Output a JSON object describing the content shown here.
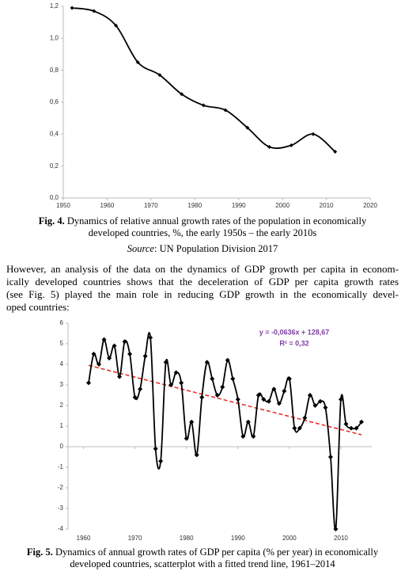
{
  "chart_data": [
    {
      "type": "line",
      "color": "#000000",
      "x": [
        1952,
        1957,
        1962,
        1967,
        1972,
        1977,
        1982,
        1987,
        1992,
        1997,
        2002,
        2007,
        2012
      ],
      "values": [
        1.19,
        1.17,
        1.08,
        0.85,
        0.77,
        0.65,
        0.58,
        0.55,
        0.44,
        0.32,
        0.33,
        0.4,
        0.29
      ],
      "xlim": [
        1950,
        2020
      ],
      "xticks": [
        1950,
        1960,
        1970,
        1980,
        1990,
        2000,
        2010,
        2020
      ],
      "ylim": [
        0,
        1.2
      ],
      "yticks": [
        {
          "value": 0,
          "label": "0,0"
        },
        {
          "value": 0.2,
          "label": "0,2"
        },
        {
          "value": 0.4,
          "label": "0,4"
        },
        {
          "value": 0.6,
          "label": "0,6"
        },
        {
          "value": 0.8,
          "label": "0,8"
        },
        {
          "value": 1.0,
          "label": "1,0"
        },
        {
          "value": 1.2,
          "label": "1,2"
        }
      ],
      "grid": false,
      "figure_label": "Fig. 4.",
      "caption": "Dynamics of relative annual growth rates of the population in economically developed countries, %, the early 1950s – the early 2010s",
      "source_label": "Source",
      "source_text": ": UN Population Division 2017"
    },
    {
      "type": "line",
      "color": "#000000",
      "x": [
        1961,
        1962,
        1963,
        1964,
        1965,
        1966,
        1967,
        1968,
        1969,
        1970,
        1971,
        1972,
        1973,
        1974,
        1975,
        1976,
        1977,
        1978,
        1979,
        1980,
        1981,
        1982,
        1983,
        1984,
        1985,
        1986,
        1987,
        1988,
        1989,
        1990,
        1991,
        1992,
        1993,
        1994,
        1995,
        1996,
        1997,
        1998,
        1999,
        2000,
        2001,
        2002,
        2003,
        2004,
        2005,
        2006,
        2007,
        2008,
        2009,
        2010,
        2011,
        2012,
        2013,
        2014
      ],
      "values": [
        3.1,
        4.5,
        4.0,
        5.2,
        4.3,
        4.9,
        3.4,
        5.1,
        4.5,
        2.4,
        2.8,
        4.4,
        5.3,
        -0.1,
        -0.7,
        4.1,
        3.0,
        3.6,
        3.1,
        0.4,
        1.2,
        -0.4,
        2.4,
        4.1,
        3.3,
        2.5,
        2.9,
        4.2,
        3.3,
        2.3,
        0.5,
        1.2,
        0.5,
        2.5,
        2.3,
        2.2,
        2.8,
        2.1,
        2.7,
        3.3,
        0.9,
        0.9,
        1.4,
        2.5,
        2.0,
        2.2,
        1.9,
        -0.5,
        -4.0,
        2.3,
        1.1,
        0.9,
        0.9,
        1.2
      ],
      "xlim": [
        1957,
        2016
      ],
      "xticks": [
        1960,
        1970,
        1980,
        1990,
        2000,
        2010
      ],
      "ylim": [
        -4,
        6
      ],
      "yticks": [
        -4,
        -3,
        -2,
        -1,
        0,
        1,
        2,
        3,
        4,
        5,
        6
      ],
      "grid": false,
      "trend": {
        "x": [
          1961,
          2014
        ],
        "values": [
          3.95,
          0.58
        ],
        "color": "#e8302a"
      },
      "annotations": [
        "y = -0,0636x + 128,67",
        "R² = 0,32"
      ],
      "annotation_color": "#7b3fa0",
      "figure_label": "Fig. 5.",
      "caption": "Dynamics of annual growth rates of GDP per capita (% per year) in economically developed countries, scatterplot with a fitted trend line, 1961–2014"
    }
  ],
  "text": {
    "lines": [
      "However, an analysis of the data on the dynamics of GDP growth per capita in econom-",
      "ically developed countries shows that the deceleration of GDP per capita growth rates",
      "(see Fig. 5) played the main role in reducing GDP growth in the economically devel-",
      "oped countries:"
    ]
  }
}
